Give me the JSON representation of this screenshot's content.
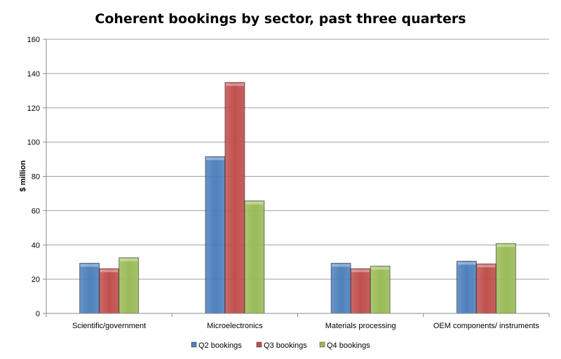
{
  "chart_data": {
    "type": "bar",
    "title": "Coherent bookings by sector, past three quarters",
    "xlabel": "",
    "ylabel": "$ million",
    "ylim": [
      0,
      160
    ],
    "yticks": [
      0,
      20,
      40,
      60,
      80,
      100,
      120,
      140,
      160
    ],
    "grid": true,
    "legend_position": "bottom",
    "categories": [
      "Scientific/government",
      "Microelectronics",
      "Materials processing",
      "OEM components/ instruments"
    ],
    "series": [
      {
        "name": "Q2 bookings",
        "color": "#4f81bd",
        "values": [
          29.3,
          91.5,
          29.3,
          30.5
        ]
      },
      {
        "name": "Q3 bookings",
        "color": "#c0504d",
        "values": [
          26.1,
          134.8,
          26.1,
          28.9
        ]
      },
      {
        "name": "Q4 bookings",
        "color": "#9bbb59",
        "values": [
          32.5,
          65.7,
          27.6,
          40.8
        ]
      }
    ]
  }
}
